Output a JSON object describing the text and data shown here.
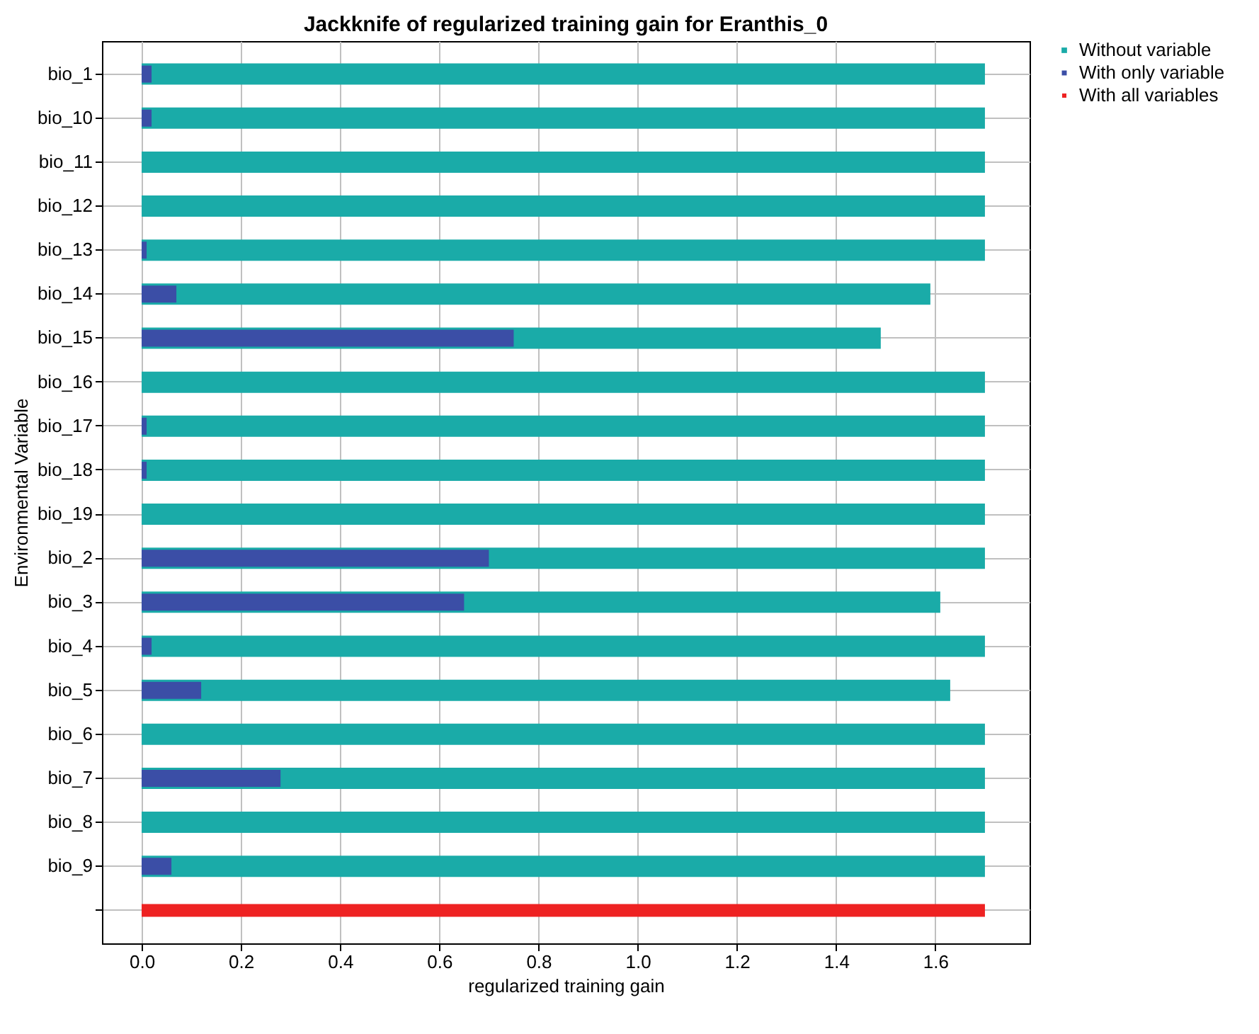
{
  "chart_data": {
    "type": "bar",
    "orientation": "horizontal",
    "title": "Jackknife of regularized training gain for Eranthis_0",
    "xlabel": "regularized training gain",
    "ylabel": "Environmental Variable",
    "categories": [
      "bio_1",
      "bio_10",
      "bio_11",
      "bio_12",
      "bio_13",
      "bio_14",
      "bio_15",
      "bio_16",
      "bio_17",
      "bio_18",
      "bio_19",
      "bio_2",
      "bio_3",
      "bio_4",
      "bio_5",
      "bio_6",
      "bio_7",
      "bio_8",
      "bio_9",
      null
    ],
    "series": [
      {
        "name": "Without variable",
        "color": "#1aaba8",
        "values": [
          1.7,
          1.7,
          1.7,
          1.7,
          1.7,
          1.59,
          1.49,
          1.7,
          1.7,
          1.7,
          1.7,
          1.7,
          1.61,
          1.7,
          1.63,
          1.7,
          1.7,
          1.7,
          1.7,
          null
        ]
      },
      {
        "name": "With only variable",
        "color": "#3b4ea6",
        "values": [
          0.02,
          0.02,
          0,
          0,
          0.01,
          0.07,
          0.75,
          0,
          0.01,
          0.01,
          0,
          0.7,
          0.65,
          0.02,
          0.12,
          0,
          0.28,
          0,
          0.06,
          null
        ]
      },
      {
        "name": "With all variables",
        "color": "#ee2222",
        "values": [
          null,
          null,
          null,
          null,
          null,
          null,
          null,
          null,
          null,
          null,
          null,
          null,
          null,
          null,
          null,
          null,
          null,
          null,
          null,
          1.7
        ]
      }
    ],
    "xlim": [
      -0.08,
      1.79
    ],
    "xticks": [
      {
        "value": 0,
        "label": "0.0"
      },
      {
        "value": 0.2,
        "label": "0.2"
      },
      {
        "value": 0.4,
        "label": "0.4"
      },
      {
        "value": 0.6,
        "label": "0.6"
      },
      {
        "value": 0.8,
        "label": "0.8"
      },
      {
        "value": 1,
        "label": "1.0"
      },
      {
        "value": 1.2,
        "label": "1.2"
      },
      {
        "value": 1.4,
        "label": "1.4"
      },
      {
        "value": 1.6,
        "label": "1.6"
      }
    ],
    "grid": true,
    "legend": "top right"
  }
}
